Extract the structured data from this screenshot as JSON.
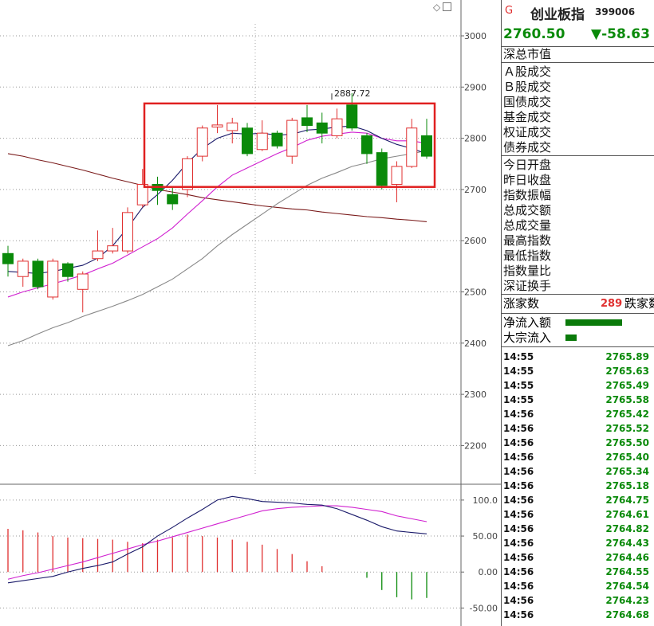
{
  "header": {
    "g_mark": "G",
    "index_name": "创业板指",
    "index_code": "399006",
    "last_price": "2760.50",
    "change": "▼-58.63",
    "colors": {
      "up": "#e03030",
      "down": "#0a8a0a",
      "ma5": "#1a1a6a",
      "ma10": "#d020d0",
      "ma20": "#888888",
      "ma60": "#7a1a1a",
      "highlight_box": "#e02020"
    }
  },
  "panel": {
    "cap_label": "深总市值",
    "turnover_labels": [
      "Ａ股成交",
      "Ｂ股成交",
      "国债成交",
      "基金成交",
      "权证成交",
      "债券成交"
    ],
    "stat_labels": [
      "今日开盘",
      "昨日收盘",
      "指数振幅",
      "总成交额",
      "总成交量",
      "最高指数",
      "最低指数",
      "指数量比",
      "深证换手"
    ],
    "up_label": "涨家数",
    "up_count": "289",
    "down_label": "跌家数",
    "flow_labels": [
      "净流入额",
      "大宗流入"
    ],
    "flow_levels": [
      0.75,
      0.15
    ]
  },
  "ticks": [
    {
      "time": "14:55",
      "price": "2765.89"
    },
    {
      "time": "14:55",
      "price": "2765.63"
    },
    {
      "time": "14:55",
      "price": "2765.49"
    },
    {
      "time": "14:55",
      "price": "2765.58"
    },
    {
      "time": "14:56",
      "price": "2765.42"
    },
    {
      "time": "14:56",
      "price": "2765.52"
    },
    {
      "time": "14:56",
      "price": "2765.50"
    },
    {
      "time": "14:56",
      "price": "2765.40"
    },
    {
      "time": "14:56",
      "price": "2765.34"
    },
    {
      "time": "14:56",
      "price": "2765.18"
    },
    {
      "time": "14:56",
      "price": "2764.75"
    },
    {
      "time": "14:56",
      "price": "2764.61"
    },
    {
      "time": "14:56",
      "price": "2764.82"
    },
    {
      "time": "14:56",
      "price": "2764.43"
    },
    {
      "time": "14:56",
      "price": "2764.46"
    },
    {
      "time": "14:56",
      "price": "2764.55"
    },
    {
      "time": "14:56",
      "price": "2764.54"
    },
    {
      "time": "14:56",
      "price": "2764.23"
    },
    {
      "time": "14:56",
      "price": "2764.68"
    }
  ],
  "chart_data": [
    {
      "type": "candlestick",
      "y_ticks": [
        2200,
        2300,
        2400,
        2500,
        2600,
        2700,
        2800,
        2900,
        3000
      ],
      "ylim": [
        2140,
        3070
      ],
      "peak_annotation": "2887.72",
      "peak_value": 2887.72,
      "candles": [
        {
          "o": 2575,
          "c": 2555,
          "h": 2590,
          "l": 2530
        },
        {
          "o": 2530,
          "c": 2560,
          "h": 2565,
          "l": 2510
        },
        {
          "o": 2560,
          "c": 2510,
          "h": 2565,
          "l": 2505
        },
        {
          "o": 2490,
          "c": 2560,
          "h": 2565,
          "l": 2485
        },
        {
          "o": 2555,
          "c": 2530,
          "h": 2558,
          "l": 2520
        },
        {
          "o": 2505,
          "c": 2535,
          "h": 2540,
          "l": 2460
        },
        {
          "o": 2565,
          "c": 2580,
          "h": 2620,
          "l": 2560
        },
        {
          "o": 2580,
          "c": 2590,
          "h": 2625,
          "l": 2575
        },
        {
          "o": 2580,
          "c": 2655,
          "h": 2665,
          "l": 2575
        },
        {
          "o": 2670,
          "c": 2710,
          "h": 2740,
          "l": 2665
        },
        {
          "o": 2710,
          "c": 2698,
          "h": 2725,
          "l": 2670
        },
        {
          "o": 2690,
          "c": 2672,
          "h": 2705,
          "l": 2660
        },
        {
          "o": 2700,
          "c": 2760,
          "h": 2765,
          "l": 2685
        },
        {
          "o": 2765,
          "c": 2820,
          "h": 2825,
          "l": 2755
        },
        {
          "o": 2822,
          "c": 2826,
          "h": 2865,
          "l": 2810
        },
        {
          "o": 2815,
          "c": 2830,
          "h": 2840,
          "l": 2790
        },
        {
          "o": 2820,
          "c": 2770,
          "h": 2830,
          "l": 2765
        },
        {
          "o": 2778,
          "c": 2810,
          "h": 2835,
          "l": 2775
        },
        {
          "o": 2810,
          "c": 2785,
          "h": 2815,
          "l": 2780
        },
        {
          "o": 2765,
          "c": 2835,
          "h": 2840,
          "l": 2750
        },
        {
          "o": 2840,
          "c": 2825,
          "h": 2865,
          "l": 2812
        },
        {
          "o": 2830,
          "c": 2810,
          "h": 2850,
          "l": 2790
        },
        {
          "o": 2805,
          "c": 2838,
          "h": 2858,
          "l": 2800
        },
        {
          "o": 2865,
          "c": 2820,
          "h": 2888,
          "l": 2815
        },
        {
          "o": 2805,
          "c": 2770,
          "h": 2810,
          "l": 2750
        },
        {
          "o": 2772,
          "c": 2708,
          "h": 2780,
          "l": 2700
        },
        {
          "o": 2710,
          "c": 2745,
          "h": 2755,
          "l": 2675
        },
        {
          "o": 2745,
          "c": 2820,
          "h": 2838,
          "l": 2742
        },
        {
          "o": 2805,
          "c": 2765,
          "h": 2838,
          "l": 2760
        }
      ],
      "ma5": [
        2540,
        2538,
        2536,
        2540,
        2546,
        2552,
        2566,
        2590,
        2625,
        2665,
        2690,
        2718,
        2752,
        2780,
        2800,
        2810,
        2808,
        2810,
        2806,
        2808,
        2816,
        2818,
        2822,
        2824,
        2815,
        2800,
        2788,
        2780,
        2770
      ],
      "ma10": [
        2490,
        2500,
        2508,
        2516,
        2524,
        2533,
        2545,
        2556,
        2572,
        2588,
        2604,
        2625,
        2652,
        2678,
        2705,
        2728,
        2742,
        2756,
        2770,
        2782,
        2796,
        2804,
        2808,
        2812,
        2810,
        2800,
        2795,
        2795,
        2790
      ],
      "ma20": [
        2395,
        2405,
        2418,
        2430,
        2440,
        2452,
        2462,
        2472,
        2483,
        2495,
        2510,
        2525,
        2545,
        2565,
        2590,
        2612,
        2632,
        2652,
        2672,
        2690,
        2708,
        2722,
        2733,
        2745,
        2752,
        2760,
        2765,
        2770,
        2776
      ],
      "ma60": [
        2770,
        2765,
        2758,
        2752,
        2745,
        2738,
        2730,
        2722,
        2715,
        2708,
        2700,
        2695,
        2690,
        2684,
        2680,
        2676,
        2672,
        2668,
        2665,
        2662,
        2660,
        2656,
        2653,
        2650,
        2647,
        2645,
        2642,
        2640,
        2637
      ]
    },
    {
      "type": "indicator",
      "y_ticks": [
        100.0,
        50.0,
        0.0,
        -50.0
      ],
      "y_tick_labels": [
        "100.0",
        "50.00",
        "0.00",
        "-50.00"
      ],
      "ylim": [
        -75,
        122
      ],
      "line1": [
        -15,
        -12,
        -9,
        -6,
        0,
        5,
        9,
        14,
        25,
        35,
        50,
        62,
        75,
        87,
        100,
        105,
        102,
        98,
        97,
        96,
        94,
        93,
        88,
        80,
        72,
        63,
        57,
        55,
        53
      ],
      "line2": [
        -10,
        -5,
        -1,
        4,
        9,
        14,
        20,
        26,
        32,
        38,
        43,
        49,
        55,
        61,
        67,
        73,
        79,
        85,
        88,
        90,
        91,
        92,
        92,
        90,
        87,
        84,
        78,
        74,
        70
      ],
      "bars": [
        60,
        58,
        55,
        50,
        48,
        47,
        46,
        45,
        42,
        40,
        45,
        48,
        52,
        50,
        48,
        45,
        42,
        38,
        32,
        25,
        15,
        8,
        0,
        0,
        -8,
        -25,
        -35,
        -38,
        -36
      ]
    }
  ]
}
